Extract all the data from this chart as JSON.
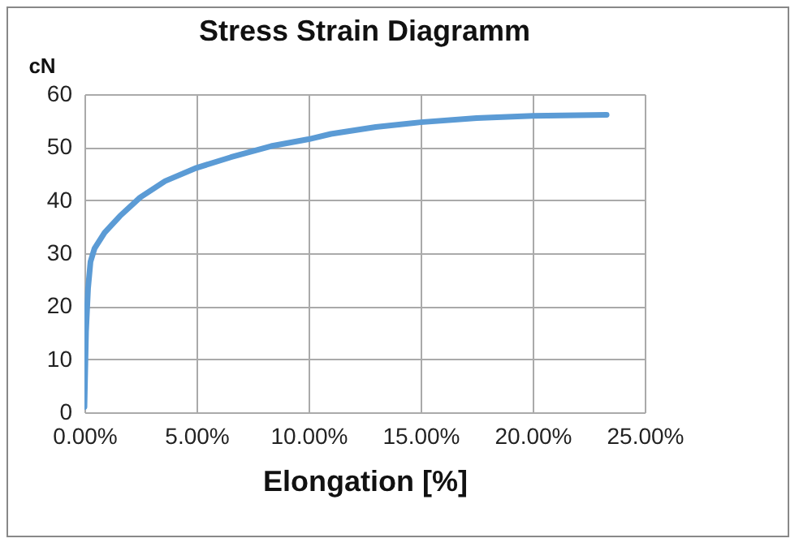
{
  "chart_data": {
    "type": "line",
    "title": "Stress Strain Diagramm",
    "xlabel": "Elongation [%]",
    "ylabel": "cN",
    "x": [
      0,
      0.07,
      0.16,
      0.27,
      0.45,
      0.9,
      1.58,
      2.48,
      3.6,
      5,
      6.53,
      8.33,
      10,
      11,
      13,
      15,
      17.5,
      20,
      23.3
    ],
    "series": [
      {
        "color": "#5b9bd5",
        "values": [
          1,
          15.2,
          23.3,
          28.4,
          30.9,
          33.9,
          37,
          40.5,
          43.6,
          46.1,
          48.1,
          50.2,
          51.5,
          52.5,
          53.8,
          54.7,
          55.5,
          55.9,
          56.1
        ]
      }
    ],
    "xlim": [
      0,
      25
    ],
    "xticks": [
      {
        "value": 0,
        "label": "0.00%"
      },
      {
        "value": 5,
        "label": "5.00%"
      },
      {
        "value": 10,
        "label": "10.00%"
      },
      {
        "value": 15,
        "label": "15.00%"
      },
      {
        "value": 20,
        "label": "20.00%"
      },
      {
        "value": 25,
        "label": "25.00%"
      }
    ],
    "ylim": [
      0,
      60
    ],
    "yticks": [
      0,
      10,
      20,
      30,
      40,
      50,
      60
    ],
    "grid": true,
    "marker": "none",
    "line_style": "solid"
  }
}
